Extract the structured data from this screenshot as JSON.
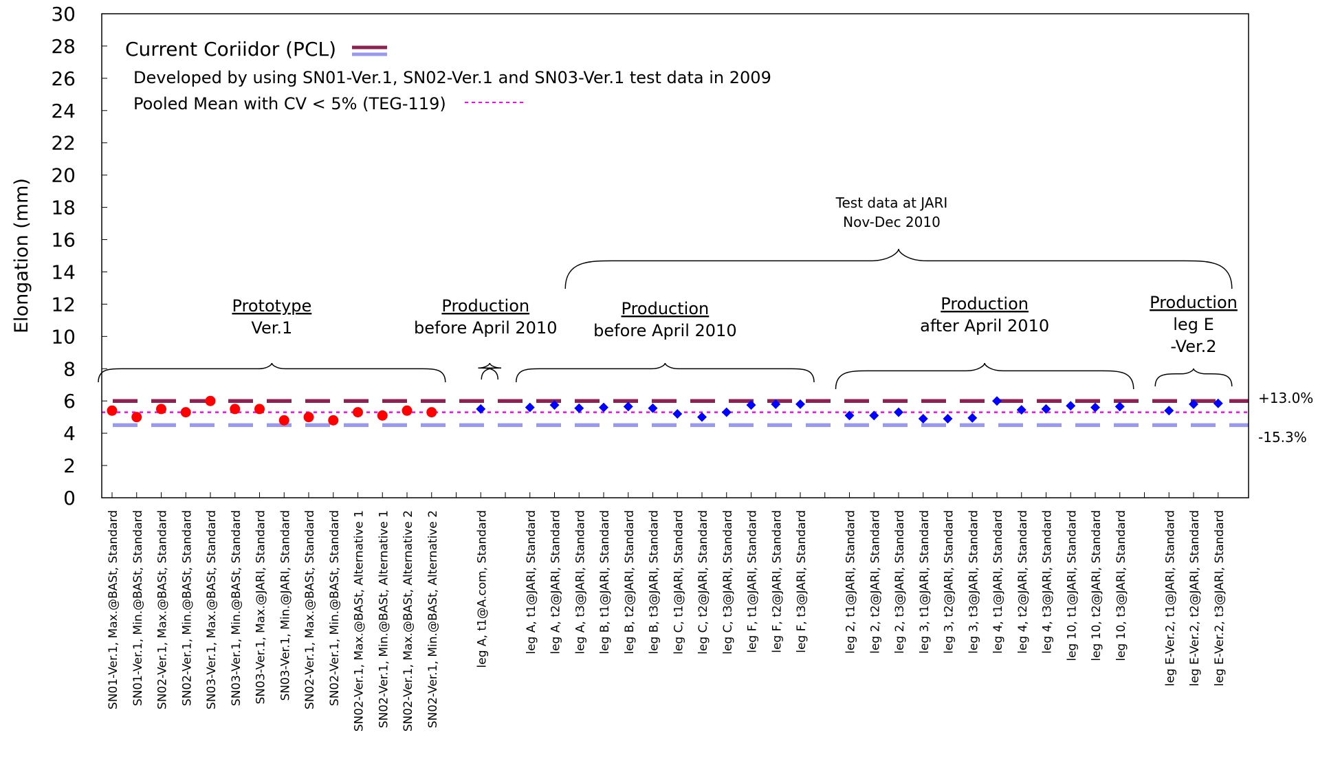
{
  "chart_data": {
    "type": "scatter",
    "ylabel": "Elongation (mm)",
    "ylim": [
      0,
      30
    ],
    "yticks": [
      0,
      2,
      4,
      6,
      8,
      10,
      12,
      14,
      16,
      18,
      20,
      22,
      24,
      26,
      28,
      30
    ],
    "categories": [
      "SN01-Ver.1,  Max.@BASt,  Standard",
      "SN01-Ver.1,   Min.@BASt,  Standard",
      "SN02-Ver.1,  Max.@BASt,  Standard",
      "SN02-Ver.1,   Min.@BASt,  Standard",
      "SN03-Ver.1,  Max.@BASt,  Standard",
      "SN03-Ver.1,   Min.@BASt,  Standard",
      "SN03-Ver.1,  Max.@JARI,  Standard",
      "SN03-Ver.1,   Min.@JARI,  Standard",
      "SN02-Ver.1,  Max.@BASt,  Standard",
      "SN02-Ver.1,   Min.@BASt,  Standard",
      "SN02-Ver.1,  Max.@BASt,  Alternative 1",
      "SN02-Ver.1,   Min.@BASt,  Alternative 1",
      "SN02-Ver.1,  Max.@BASt,  Alternative 2",
      "SN02-Ver.1,   Min.@BASt,  Alternative 2",
      "",
      "leg A,  t1@A.com,  Standard",
      "",
      "leg A,  t1@JARI,  Standard",
      "leg A,  t2@JARI,  Standard",
      "leg A,  t3@JARI,  Standard",
      "leg B,  t1@JARI,  Standard",
      "leg B,  t2@JARI,  Standard",
      "leg B,  t3@JARI,  Standard",
      "leg C,  t1@JARI,  Standard",
      "leg C,  t2@JARI,  Standard",
      "leg C,  t3@JARI,  Standard",
      "leg F,  t1@JARI,  Standard",
      "leg F,  t2@JARI,  Standard",
      "leg F,  t3@JARI,  Standard",
      "",
      "leg 2,  t1@JARI,  Standard",
      "leg 2,  t2@JARI,  Standard",
      "leg 2,  t3@JARI,  Standard",
      "leg 3,  t1@JARI,  Standard",
      "leg 3,  t2@JARI,  Standard",
      "leg 3,  t3@JARI,  Standard",
      "leg 4,  t1@JARI,  Standard",
      "leg 4,  t2@JARI,  Standard",
      "leg 4,  t3@JARI,  Standard",
      "leg 10,  t1@JARI,  Standard",
      "leg 10,  t2@JARI,  Standard",
      "leg 10,  t3@JARI,  Standard",
      "",
      "leg E-Ver.2,  t1@JARI,  Standard",
      "leg E-Ver.2,  t2@JARI,  Standard",
      "leg E-Ver.2,  t3@JARI,  Standard"
    ],
    "series": [
      {
        "marker": "circle",
        "color": "#ff0000",
        "values": [
          5.4,
          5.0,
          5.5,
          5.3,
          6.0,
          5.5,
          5.5,
          4.8,
          5.0,
          4.8,
          5.3,
          5.1,
          5.4,
          5.3,
          null,
          null,
          null,
          null,
          null,
          null,
          null,
          null,
          null,
          null,
          null,
          null,
          null,
          null,
          null,
          null,
          null,
          null,
          null,
          null,
          null,
          null,
          null,
          null,
          null,
          null,
          null,
          null,
          null,
          null,
          null,
          null
        ]
      },
      {
        "marker": "diamond",
        "color": "#0000ff",
        "values": [
          null,
          null,
          null,
          null,
          null,
          null,
          null,
          null,
          null,
          null,
          null,
          null,
          null,
          null,
          null,
          5.5,
          null,
          5.6,
          5.75,
          5.55,
          5.6,
          5.65,
          5.55,
          5.2,
          5.0,
          5.3,
          5.75,
          5.8,
          5.8,
          null,
          5.1,
          5.1,
          5.3,
          4.9,
          4.9,
          4.95,
          6.0,
          5.45,
          5.5,
          5.7,
          5.6,
          5.65,
          null,
          5.4,
          5.8,
          5.85
        ]
      }
    ],
    "reference_lines": [
      {
        "name": "upper corridor",
        "value": 6.0,
        "color": "#8b2252",
        "style": "dashed",
        "label": "+13.0%"
      },
      {
        "name": "pooled mean",
        "value": 5.3,
        "color": "#ff00ff",
        "style": "dotted",
        "label": ""
      },
      {
        "name": "lower corridor",
        "value": 4.5,
        "color": "#9999ee",
        "style": "dashed",
        "label": "-15.3%"
      }
    ],
    "legend": {
      "corridor_label": "Current Coriidor (PCL)",
      "developed_note": "Developed by using SN01-Ver.1, SN02-Ver.1 and SN03-Ver.1 test data in 2009",
      "pooled_label": "Pooled Mean with CV < 5% (TEG-119)"
    },
    "groups": [
      {
        "title": "Prototype",
        "subtitle": "Ver.1",
        "from": 0,
        "to": 13
      },
      {
        "title": "Production",
        "subtitle": "before April 2010",
        "from": 15,
        "to": 15
      },
      {
        "title": "Production",
        "subtitle": "before April 2010",
        "from": 17,
        "to": 28
      },
      {
        "title": "Production",
        "subtitle": "after April 2010",
        "from": 30,
        "to": 41
      },
      {
        "title": "Production",
        "subtitle": "leg E",
        "subtitle2": "-Ver.2",
        "from": 43,
        "to": 45
      }
    ],
    "overall_annotation": {
      "line1": "Test data at JARI",
      "line2": "Nov-Dec 2010",
      "from": 19,
      "to": 45
    }
  }
}
